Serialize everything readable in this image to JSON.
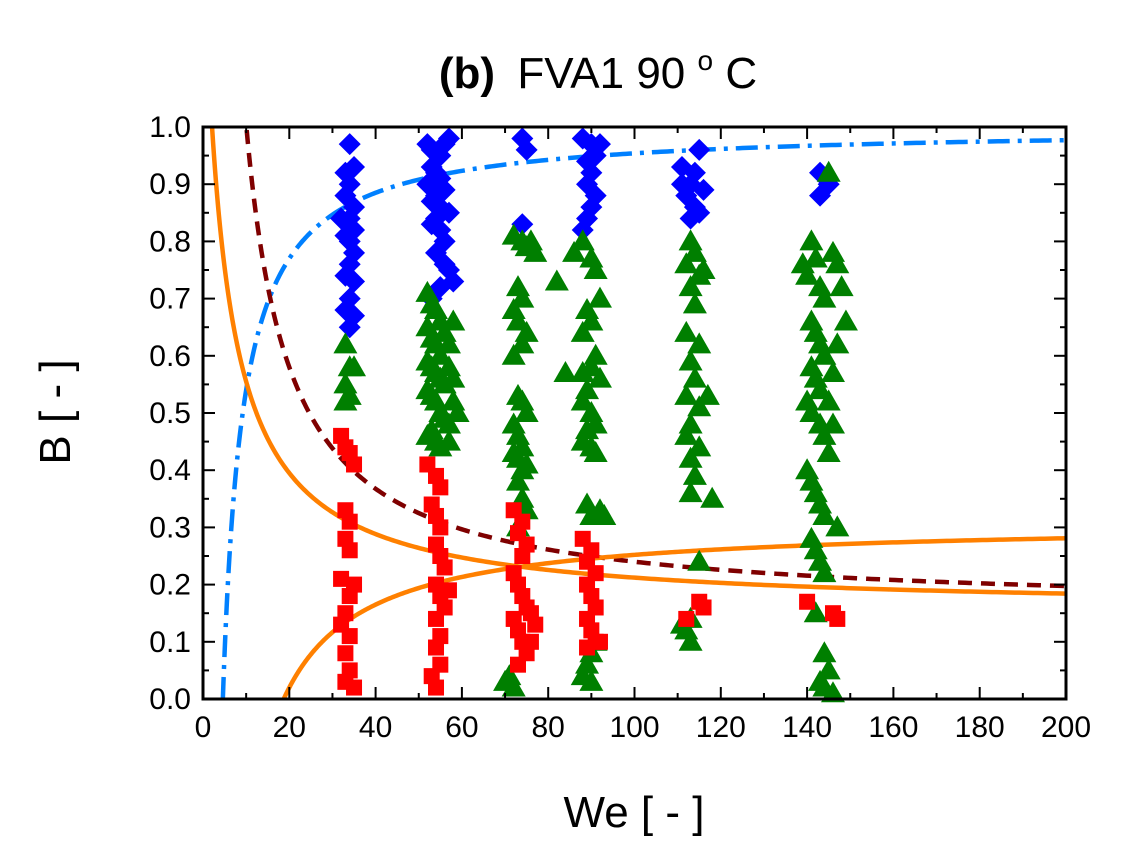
{
  "chart_data": {
    "type": "scatter",
    "title": {
      "prefix": "(b)",
      "main": "FVA1 90",
      "sup": "o",
      "suffix": "C"
    },
    "xlabel": "We [ - ]",
    "ylabel": "B [ - ]",
    "xlim": [
      0,
      200
    ],
    "ylim": [
      0,
      1.0
    ],
    "x_ticks": [
      "0",
      "20",
      "40",
      "60",
      "80",
      "100",
      "120",
      "140",
      "160",
      "180",
      "200"
    ],
    "y_ticks": [
      "0.0",
      "0.1",
      "0.2",
      "0.3",
      "0.4",
      "0.5",
      "0.6",
      "0.7",
      "0.8",
      "0.9",
      "1.0"
    ],
    "grid": false,
    "legend": "none",
    "series": [
      {
        "marker": "diamond",
        "color": "#0000ff",
        "points": [
          [
            34,
            0.97
          ],
          [
            33,
            0.92
          ],
          [
            35,
            0.93
          ],
          [
            34,
            0.9
          ],
          [
            33,
            0.88
          ],
          [
            35,
            0.86
          ],
          [
            34,
            0.84
          ],
          [
            32,
            0.84
          ],
          [
            35,
            0.82
          ],
          [
            34,
            0.8
          ],
          [
            33,
            0.81
          ],
          [
            35,
            0.78
          ],
          [
            34,
            0.76
          ],
          [
            33,
            0.74
          ],
          [
            35,
            0.73
          ],
          [
            34,
            0.7
          ],
          [
            33,
            0.68
          ],
          [
            35,
            0.67
          ],
          [
            34,
            0.65
          ],
          [
            52,
            0.97
          ],
          [
            53,
            0.96
          ],
          [
            55,
            0.95
          ],
          [
            56,
            0.97
          ],
          [
            53,
            0.93
          ],
          [
            54,
            0.92
          ],
          [
            55,
            0.91
          ],
          [
            52,
            0.9
          ],
          [
            56,
            0.89
          ],
          [
            54,
            0.88
          ],
          [
            53,
            0.87
          ],
          [
            55,
            0.86
          ],
          [
            57,
            0.85
          ],
          [
            54,
            0.84
          ],
          [
            53,
            0.83
          ],
          [
            55,
            0.82
          ],
          [
            56,
            0.8
          ],
          [
            54,
            0.78
          ],
          [
            56,
            0.76
          ],
          [
            57,
            0.75
          ],
          [
            58,
            0.73
          ],
          [
            55,
            0.72
          ],
          [
            53,
            0.7
          ],
          [
            57,
            0.98
          ],
          [
            74,
            0.98
          ],
          [
            75,
            0.96
          ],
          [
            74,
            0.83
          ],
          [
            88,
            0.98
          ],
          [
            90,
            0.97
          ],
          [
            92,
            0.97
          ],
          [
            89,
            0.94
          ],
          [
            91,
            0.95
          ],
          [
            90,
            0.92
          ],
          [
            89,
            0.9
          ],
          [
            91,
            0.88
          ],
          [
            90,
            0.86
          ],
          [
            89,
            0.84
          ],
          [
            88,
            0.82
          ],
          [
            111,
            0.93
          ],
          [
            115,
            0.96
          ],
          [
            114,
            0.92
          ],
          [
            113,
            0.9
          ],
          [
            116,
            0.89
          ],
          [
            112,
            0.88
          ],
          [
            114,
            0.86
          ],
          [
            115,
            0.85
          ],
          [
            113,
            0.84
          ],
          [
            111,
            0.9
          ],
          [
            143,
            0.92
          ],
          [
            145,
            0.9
          ],
          [
            143,
            0.88
          ]
        ]
      },
      {
        "marker": "triangle",
        "color": "#007f00",
        "points": [
          [
            33,
            0.62
          ],
          [
            34,
            0.58
          ],
          [
            35,
            0.58
          ],
          [
            33,
            0.55
          ],
          [
            34,
            0.53
          ],
          [
            33,
            0.52
          ],
          [
            52,
            0.71
          ],
          [
            53,
            0.69
          ],
          [
            54,
            0.68
          ],
          [
            55,
            0.66
          ],
          [
            52,
            0.65
          ],
          [
            53,
            0.63
          ],
          [
            54,
            0.62
          ],
          [
            55,
            0.6
          ],
          [
            52,
            0.59
          ],
          [
            53,
            0.58
          ],
          [
            54,
            0.57
          ],
          [
            55,
            0.56
          ],
          [
            56,
            0.55
          ],
          [
            52,
            0.54
          ],
          [
            53,
            0.53
          ],
          [
            54,
            0.52
          ],
          [
            55,
            0.5
          ],
          [
            56,
            0.49
          ],
          [
            53,
            0.47
          ],
          [
            52,
            0.46
          ],
          [
            54,
            0.45
          ],
          [
            55,
            0.44
          ],
          [
            57,
            0.48
          ],
          [
            58,
            0.52
          ],
          [
            57,
            0.58
          ],
          [
            56,
            0.64
          ],
          [
            58,
            0.66
          ],
          [
            57,
            0.62
          ],
          [
            58,
            0.56
          ],
          [
            57,
            0.45
          ],
          [
            59,
            0.5
          ],
          [
            72,
            0.81
          ],
          [
            74,
            0.8
          ],
          [
            75,
            0.79
          ],
          [
            73,
            0.72
          ],
          [
            74,
            0.7
          ],
          [
            72,
            0.68
          ],
          [
            73,
            0.66
          ],
          [
            75,
            0.64
          ],
          [
            74,
            0.62
          ],
          [
            72,
            0.6
          ],
          [
            73,
            0.53
          ],
          [
            74,
            0.52
          ],
          [
            75,
            0.5
          ],
          [
            72,
            0.48
          ],
          [
            73,
            0.46
          ],
          [
            74,
            0.44
          ],
          [
            72,
            0.43
          ],
          [
            73,
            0.42
          ],
          [
            75,
            0.41
          ],
          [
            74,
            0.4
          ],
          [
            73,
            0.38
          ],
          [
            74,
            0.35
          ],
          [
            75,
            0.33
          ],
          [
            73,
            0.3
          ],
          [
            71,
            0.04
          ],
          [
            72,
            0.02
          ],
          [
            70,
            0.03
          ],
          [
            76,
            0.8
          ],
          [
            77,
            0.78
          ],
          [
            82,
            0.73
          ],
          [
            86,
            0.78
          ],
          [
            88,
            0.8
          ],
          [
            90,
            0.77
          ],
          [
            91,
            0.75
          ],
          [
            92,
            0.7
          ],
          [
            89,
            0.68
          ],
          [
            90,
            0.66
          ],
          [
            88,
            0.64
          ],
          [
            91,
            0.6
          ],
          [
            90,
            0.58
          ],
          [
            88,
            0.57
          ],
          [
            92,
            0.56
          ],
          [
            89,
            0.54
          ],
          [
            88,
            0.52
          ],
          [
            90,
            0.5
          ],
          [
            91,
            0.48
          ],
          [
            89,
            0.47
          ],
          [
            88,
            0.45
          ],
          [
            90,
            0.44
          ],
          [
            91,
            0.43
          ],
          [
            89,
            0.34
          ],
          [
            90,
            0.32
          ],
          [
            92,
            0.33
          ],
          [
            93,
            0.32
          ],
          [
            84,
            0.57
          ],
          [
            91,
            0.1
          ],
          [
            90,
            0.08
          ],
          [
            89,
            0.06
          ],
          [
            88,
            0.04
          ],
          [
            90,
            0.03
          ],
          [
            113,
            0.8
          ],
          [
            114,
            0.78
          ],
          [
            112,
            0.76
          ],
          [
            115,
            0.74
          ],
          [
            113,
            0.72
          ],
          [
            114,
            0.69
          ],
          [
            112,
            0.64
          ],
          [
            115,
            0.62
          ],
          [
            113,
            0.59
          ],
          [
            114,
            0.56
          ],
          [
            112,
            0.53
          ],
          [
            115,
            0.51
          ],
          [
            113,
            0.48
          ],
          [
            112,
            0.46
          ],
          [
            115,
            0.44
          ],
          [
            113,
            0.42
          ],
          [
            114,
            0.39
          ],
          [
            113,
            0.36
          ],
          [
            118,
            0.35
          ],
          [
            115,
            0.24
          ],
          [
            111,
            0.13
          ],
          [
            113,
            0.14
          ],
          [
            112,
            0.12
          ],
          [
            113,
            0.1
          ],
          [
            116,
            0.75
          ],
          [
            117,
            0.53
          ],
          [
            139,
            0.76
          ],
          [
            141,
            0.8
          ],
          [
            142,
            0.77
          ],
          [
            140,
            0.74
          ],
          [
            143,
            0.72
          ],
          [
            144,
            0.7
          ],
          [
            141,
            0.66
          ],
          [
            142,
            0.64
          ],
          [
            143,
            0.62
          ],
          [
            144,
            0.6
          ],
          [
            141,
            0.58
          ],
          [
            142,
            0.56
          ],
          [
            143,
            0.54
          ],
          [
            140,
            0.52
          ],
          [
            141,
            0.5
          ],
          [
            143,
            0.48
          ],
          [
            144,
            0.46
          ],
          [
            140,
            0.4
          ],
          [
            141,
            0.38
          ],
          [
            142,
            0.36
          ],
          [
            143,
            0.34
          ],
          [
            144,
            0.32
          ],
          [
            141,
            0.28
          ],
          [
            142,
            0.26
          ],
          [
            143,
            0.24
          ],
          [
            144,
            0.22
          ],
          [
            145,
            0.92
          ],
          [
            146,
            0.78
          ],
          [
            147,
            0.76
          ],
          [
            148,
            0.72
          ],
          [
            149,
            0.66
          ],
          [
            147,
            0.62
          ],
          [
            146,
            0.57
          ],
          [
            145,
            0.52
          ],
          [
            146,
            0.48
          ],
          [
            145,
            0.43
          ],
          [
            147,
            0.3
          ],
          [
            142,
            0.15
          ],
          [
            144,
            0.08
          ],
          [
            145,
            0.05
          ],
          [
            143,
            0.03
          ],
          [
            146,
            0.01
          ],
          [
            144,
            0.02
          ]
        ]
      },
      {
        "marker": "square",
        "color": "#ff0000",
        "points": [
          [
            32,
            0.46
          ],
          [
            33,
            0.44
          ],
          [
            34,
            0.43
          ],
          [
            35,
            0.41
          ],
          [
            33,
            0.33
          ],
          [
            34,
            0.31
          ],
          [
            33,
            0.28
          ],
          [
            34,
            0.26
          ],
          [
            32,
            0.21
          ],
          [
            35,
            0.2
          ],
          [
            34,
            0.18
          ],
          [
            33,
            0.15
          ],
          [
            32,
            0.13
          ],
          [
            34,
            0.11
          ],
          [
            33,
            0.08
          ],
          [
            34,
            0.05
          ],
          [
            33,
            0.03
          ],
          [
            35,
            0.02
          ],
          [
            52,
            0.41
          ],
          [
            54,
            0.39
          ],
          [
            55,
            0.37
          ],
          [
            53,
            0.34
          ],
          [
            54,
            0.32
          ],
          [
            55,
            0.3
          ],
          [
            54,
            0.27
          ],
          [
            55,
            0.25
          ],
          [
            56,
            0.23
          ],
          [
            54,
            0.2
          ],
          [
            55,
            0.18
          ],
          [
            56,
            0.16
          ],
          [
            54,
            0.14
          ],
          [
            55,
            0.11
          ],
          [
            54,
            0.09
          ],
          [
            55,
            0.06
          ],
          [
            53,
            0.04
          ],
          [
            54,
            0.02
          ],
          [
            57,
            0.19
          ],
          [
            72,
            0.33
          ],
          [
            74,
            0.31
          ],
          [
            73,
            0.29
          ],
          [
            75,
            0.27
          ],
          [
            74,
            0.25
          ],
          [
            72,
            0.22
          ],
          [
            73,
            0.2
          ],
          [
            74,
            0.18
          ],
          [
            75,
            0.16
          ],
          [
            72,
            0.14
          ],
          [
            73,
            0.12
          ],
          [
            74,
            0.1
          ],
          [
            75,
            0.08
          ],
          [
            73,
            0.06
          ],
          [
            76,
            0.15
          ],
          [
            77,
            0.13
          ],
          [
            76,
            0.1
          ],
          [
            88,
            0.28
          ],
          [
            90,
            0.26
          ],
          [
            89,
            0.24
          ],
          [
            91,
            0.22
          ],
          [
            89,
            0.2
          ],
          [
            90,
            0.18
          ],
          [
            91,
            0.16
          ],
          [
            89,
            0.14
          ],
          [
            90,
            0.12
          ],
          [
            91,
            0.1
          ],
          [
            89,
            0.09
          ],
          [
            92,
            0.1
          ],
          [
            112,
            0.14
          ],
          [
            115,
            0.17
          ],
          [
            116,
            0.16
          ],
          [
            140,
            0.17
          ],
          [
            146,
            0.15
          ],
          [
            147,
            0.14
          ]
        ]
      }
    ],
    "curves": [
      {
        "style": "dash-dot",
        "color": "#0080ff"
      },
      {
        "style": "dashed",
        "color": "#7f0000"
      },
      {
        "style": "solid",
        "color": "#ff8000"
      },
      {
        "style": "solid",
        "color": "#ff8000"
      }
    ]
  }
}
